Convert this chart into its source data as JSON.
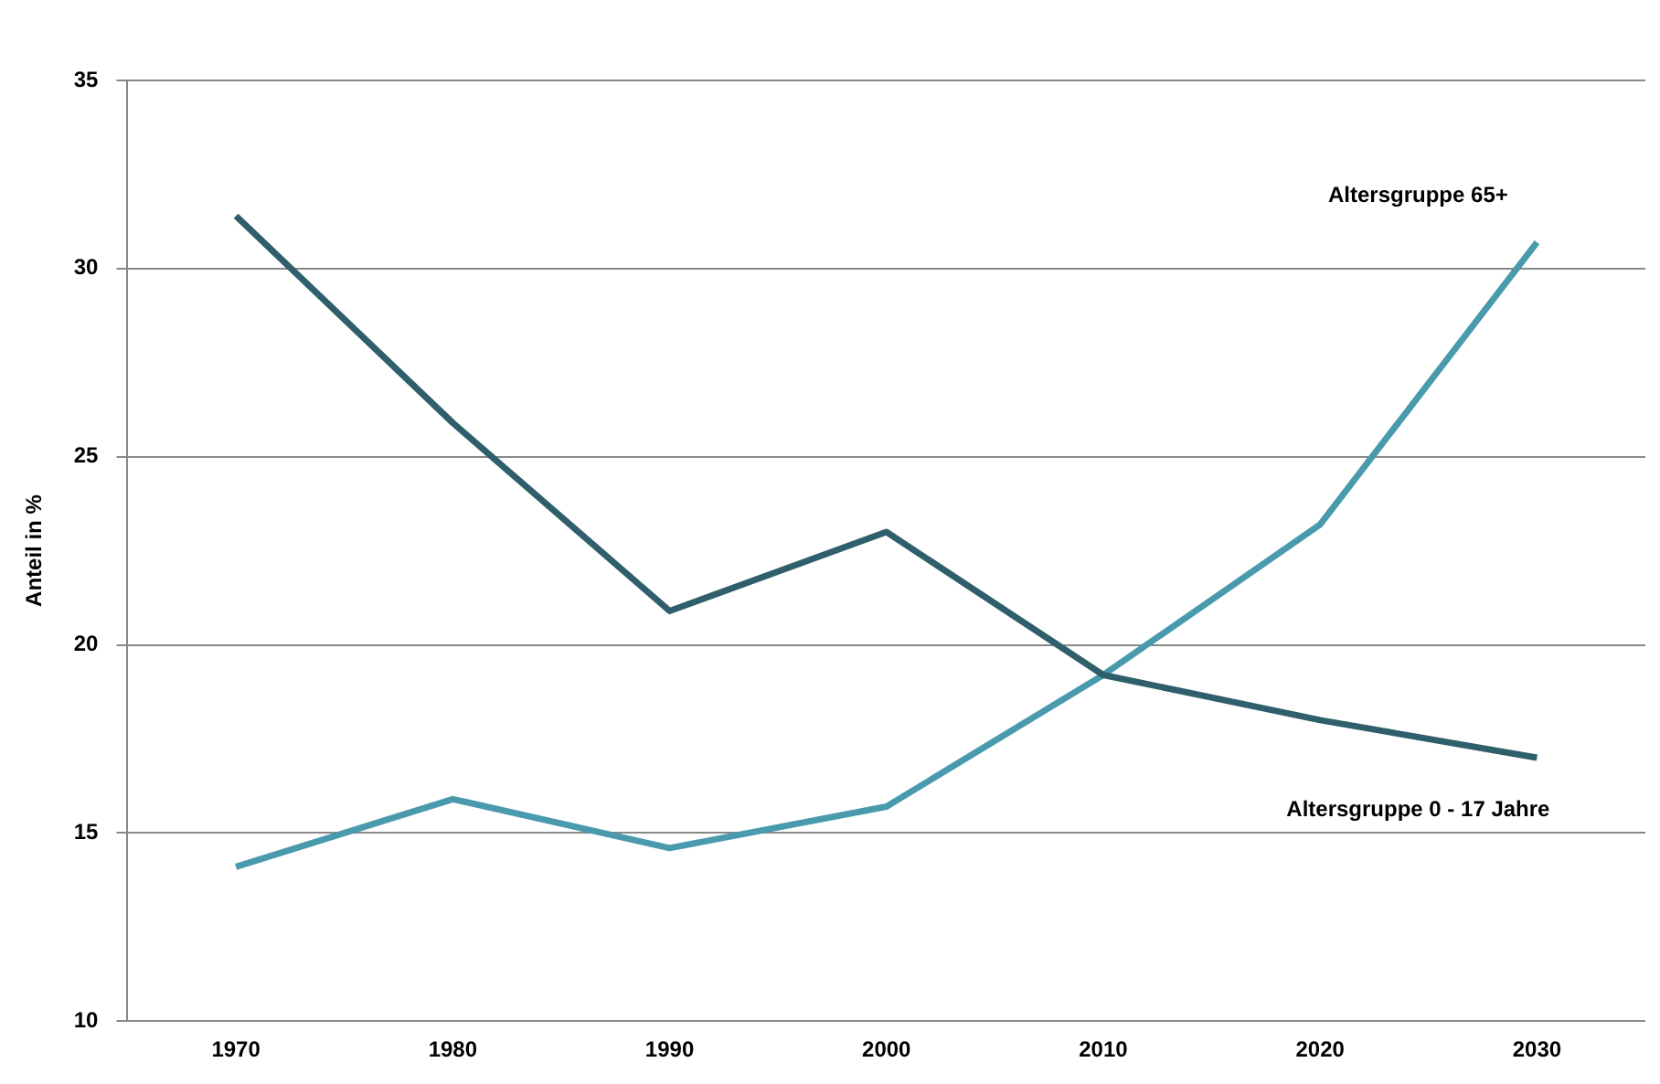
{
  "chart_data": {
    "type": "line",
    "ylabel": "Anteil in %",
    "categories": [
      "1970",
      "1980",
      "1990",
      "2000",
      "2010",
      "2020",
      "2030"
    ],
    "series": [
      {
        "name": "Altersgruppe 0 - 17 Jahre",
        "color": "#2f5f6b",
        "values": [
          31.4,
          25.9,
          20.9,
          23.0,
          19.2,
          18.0,
          17.0
        ]
      },
      {
        "name": "Altersgruppe 65+",
        "color": "#4a9aae",
        "values": [
          14.1,
          15.9,
          14.6,
          15.7,
          19.2,
          23.2,
          30.7
        ]
      }
    ],
    "ylim": [
      10,
      35
    ],
    "yticks": [
      10,
      15,
      20,
      25,
      30,
      35
    ],
    "grid": "y",
    "legend": false,
    "marker": "none",
    "line_style": "solid"
  }
}
